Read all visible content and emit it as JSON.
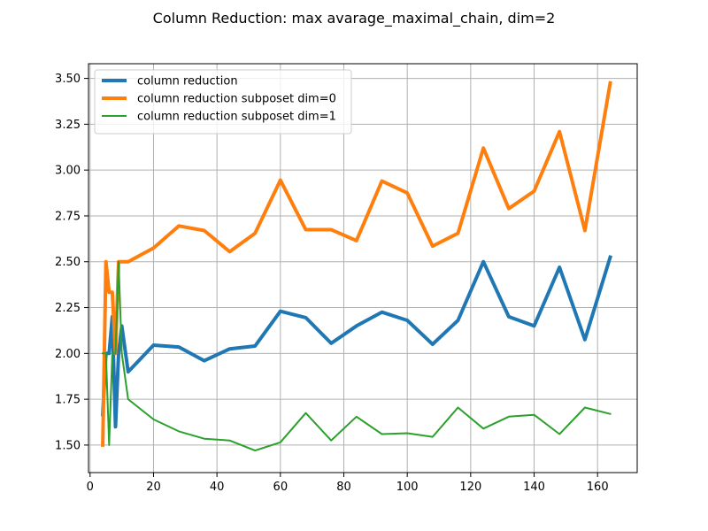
{
  "chart_data": {
    "type": "line",
    "title": "Column Reduction: max avarage_maximal_chain, dim=2",
    "xlabel": "",
    "ylabel": "",
    "xlim": [
      -0.5,
      172.5
    ],
    "ylim": [
      1.35,
      3.58
    ],
    "xticks": [
      0,
      20,
      40,
      60,
      80,
      100,
      120,
      140,
      160
    ],
    "yticks": [
      1.5,
      1.75,
      2.0,
      2.25,
      2.5,
      2.75,
      3.0,
      3.25,
      3.5
    ],
    "xtick_labels": [
      "0",
      "20",
      "40",
      "60",
      "80",
      "100",
      "120",
      "140",
      "160"
    ],
    "ytick_labels": [
      "1.50",
      "1.75",
      "2.00",
      "2.25",
      "2.50",
      "2.75",
      "3.00",
      "3.25",
      "3.50"
    ],
    "grid": true,
    "legend_position": "upper-left",
    "series": [
      {
        "name": "column reduction",
        "color": "#1f77b4",
        "width": 4,
        "x": [
          4,
          5,
          6,
          7,
          8,
          9,
          10,
          12,
          20,
          28,
          36,
          44,
          52,
          60,
          68,
          76,
          84,
          92,
          100,
          108,
          116,
          124,
          132,
          140,
          148,
          156,
          164
        ],
        "y": [
          1.667,
          2.0,
          2.0,
          2.2,
          1.6,
          2.0,
          2.15,
          1.9,
          2.045,
          2.035,
          1.96,
          2.025,
          2.04,
          2.23,
          2.195,
          2.055,
          2.15,
          2.225,
          2.18,
          2.05,
          2.18,
          2.5,
          2.2,
          2.15,
          2.47,
          2.075,
          2.525
        ]
      },
      {
        "name": "column reduction subposet dim=0",
        "color": "#ff7f0e",
        "width": 4,
        "x": [
          4,
          5,
          6,
          7,
          8,
          9,
          10,
          12,
          20,
          28,
          36,
          44,
          52,
          60,
          68,
          76,
          84,
          92,
          100,
          108,
          116,
          124,
          132,
          140,
          148,
          156,
          164
        ],
        "y": [
          1.5,
          2.5,
          2.333,
          2.333,
          2.0,
          2.5,
          2.5,
          2.5,
          2.575,
          2.695,
          2.67,
          2.555,
          2.655,
          2.945,
          2.675,
          2.675,
          2.615,
          2.94,
          2.875,
          2.585,
          2.655,
          3.12,
          2.79,
          2.885,
          3.21,
          2.67,
          3.475
        ]
      },
      {
        "name": "column reduction subposet dim=1",
        "color": "#2ca02c",
        "width": 2,
        "x": [
          4,
          5,
          6,
          7,
          8,
          9,
          10,
          12,
          20,
          28,
          36,
          44,
          52,
          60,
          68,
          76,
          84,
          92,
          100,
          108,
          116,
          124,
          132,
          140,
          148,
          156,
          164
        ],
        "y": [
          2.0,
          2.0,
          1.5,
          2.0,
          2.0,
          2.5,
          2.0,
          1.75,
          1.64,
          1.575,
          1.535,
          1.525,
          1.47,
          1.515,
          1.675,
          1.525,
          1.655,
          1.56,
          1.565,
          1.545,
          1.705,
          1.59,
          1.655,
          1.665,
          1.56,
          1.705,
          1.67
        ]
      }
    ]
  }
}
